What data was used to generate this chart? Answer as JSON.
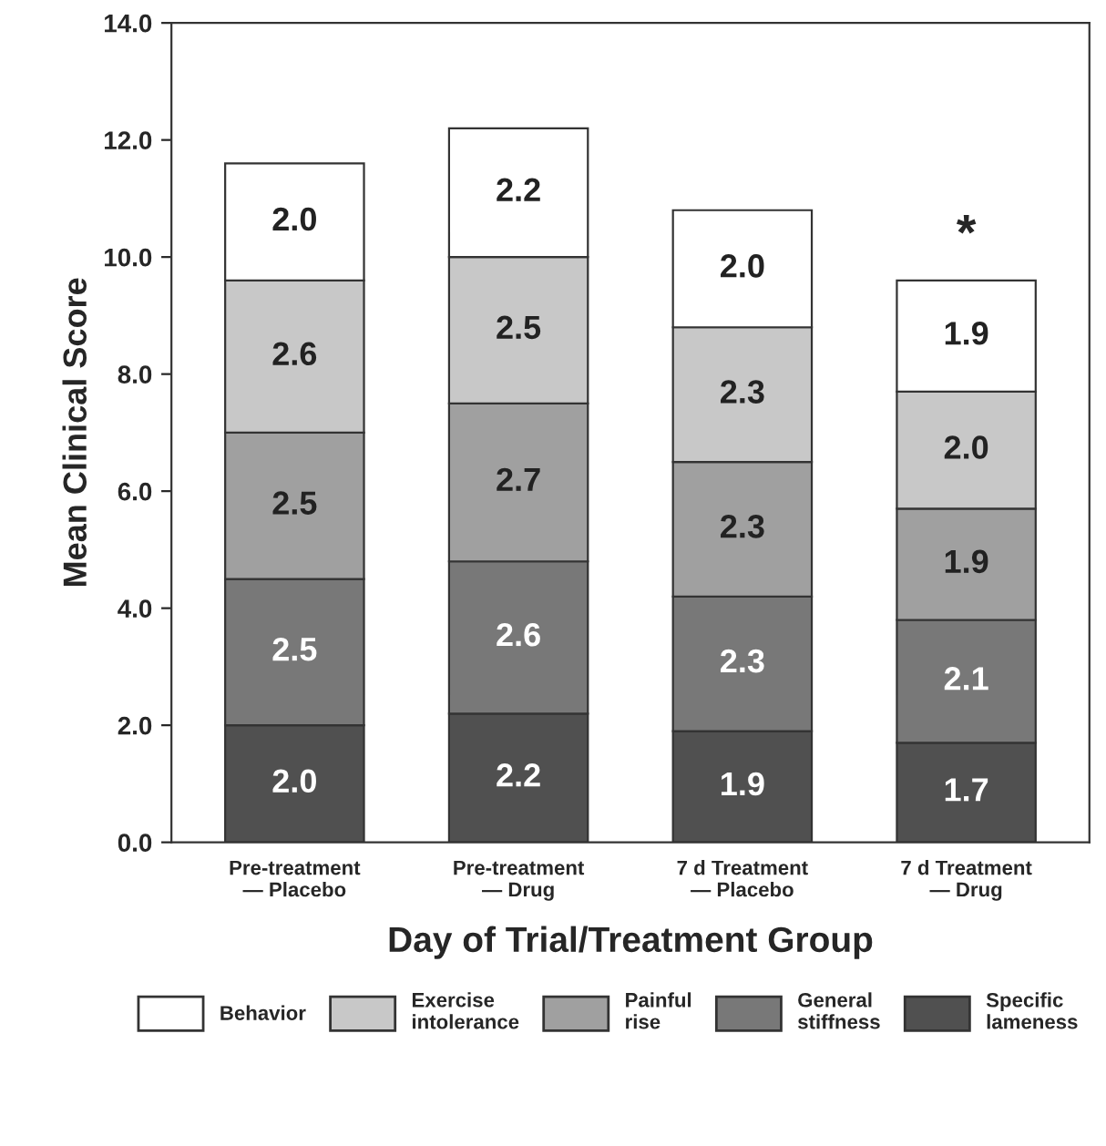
{
  "chart_data": {
    "type": "bar",
    "stacked": true,
    "xlabel": "Day of Trial/Treatment Group",
    "ylabel": "Mean Clinical Score",
    "categories": [
      "Pre-treatment — Placebo",
      "Pre-treatment — Drug",
      "7 d Treatment — Placebo",
      "7 d Treatment — Drug"
    ],
    "series": [
      {
        "name": "Specific lameness",
        "color": "#505050",
        "values": [
          2.0,
          2.2,
          1.9,
          1.7
        ],
        "value_labels": [
          "2.0",
          "2.2",
          "1.9",
          "1.7"
        ]
      },
      {
        "name": "General stiffness",
        "color": "#787878",
        "values": [
          2.5,
          2.6,
          2.3,
          2.1
        ],
        "value_labels": [
          "2.5",
          "2.6",
          "2.3",
          "2.1"
        ]
      },
      {
        "name": "Painful rise",
        "color": "#a0a0a0",
        "values": [
          2.5,
          2.7,
          2.3,
          1.9
        ],
        "value_labels": [
          "2.5",
          "2.7",
          "2.3",
          "1.9"
        ]
      },
      {
        "name": "Exercise intolerance",
        "color": "#c8c8c8",
        "values": [
          2.6,
          2.5,
          2.3,
          2.0
        ],
        "value_labels": [
          "2.6",
          "2.5",
          "2.3",
          "2.0"
        ]
      },
      {
        "name": "Behavior",
        "color": "#ffffff",
        "values": [
          2.0,
          2.2,
          2.0,
          1.9
        ],
        "value_labels": [
          "2.0",
          "2.2",
          "2.0",
          "1.9"
        ]
      }
    ],
    "ylim": [
      0,
      14
    ],
    "yticks": [
      {
        "value": 0,
        "label": "0.0"
      },
      {
        "value": 2,
        "label": "2.0"
      },
      {
        "value": 4,
        "label": "4.0"
      },
      {
        "value": 6,
        "label": "6.0"
      },
      {
        "value": 8,
        "label": "8.0"
      },
      {
        "value": 10,
        "label": "10.0"
      },
      {
        "value": 12,
        "label": "12.0"
      },
      {
        "value": 14,
        "label": "14.0"
      }
    ],
    "legend": "bottom",
    "grid": false,
    "annotations": [
      "*"
    ]
  }
}
